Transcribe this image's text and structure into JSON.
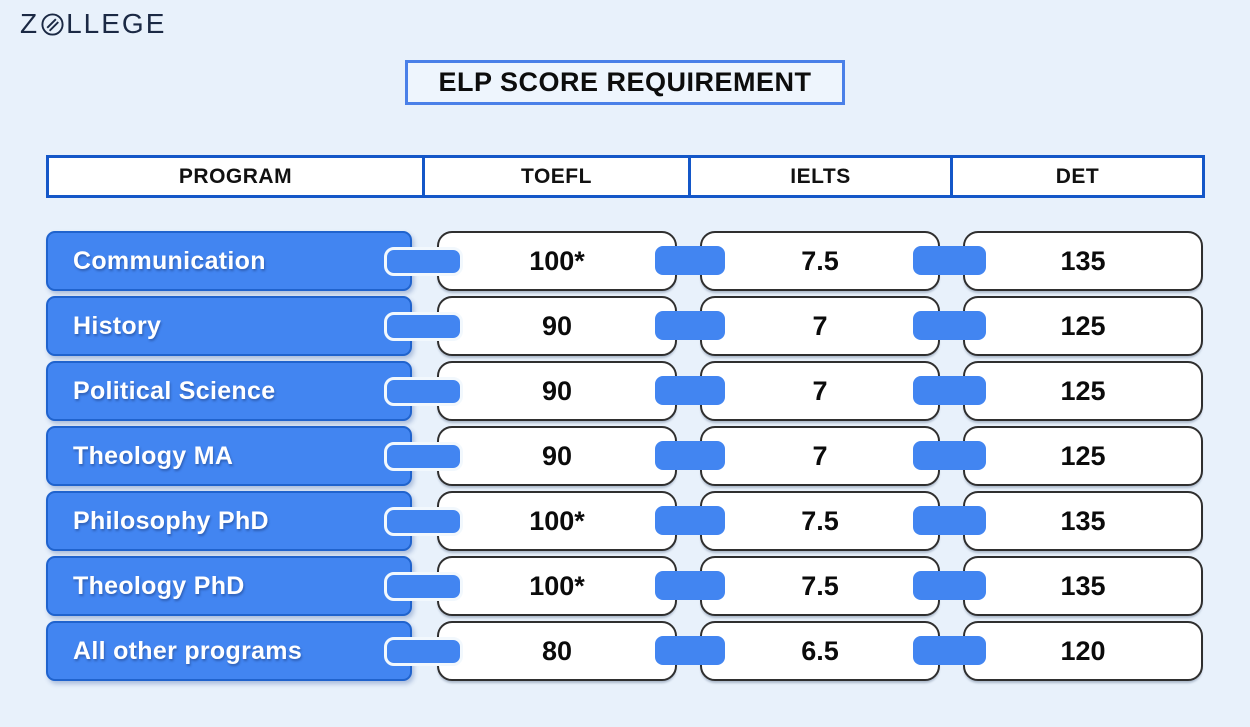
{
  "logo": {
    "prefix": "Z",
    "suffix": "LLEGE",
    "icon": "slashed-o-icon",
    "color": "#1b2944"
  },
  "title": "ELP SCORE REQUIREMENT",
  "colors": {
    "background": "#e8f1fb",
    "accent_blue": "#4285f1",
    "program_border": "#2063cd",
    "header_border": "#1457c8",
    "title_border": "#4a80e8",
    "score_box_border": "#2f2f2f",
    "text_dark": "#0d0d0d"
  },
  "chart_data": {
    "type": "table",
    "title": "ELP SCORE REQUIREMENT",
    "columns": [
      "PROGRAM",
      "TOEFL",
      "IELTS",
      "DET"
    ],
    "rows": [
      [
        "Communication",
        "100*",
        "7.5",
        "135"
      ],
      [
        "History",
        "90",
        "7",
        "125"
      ],
      [
        "Political Science",
        "90",
        "7",
        "125"
      ],
      [
        "Theology MA",
        "90",
        "7",
        "125"
      ],
      [
        "Philosophy PhD",
        "100*",
        "7.5",
        "135"
      ],
      [
        "Theology PhD",
        "100*",
        "7.5",
        "135"
      ],
      [
        "All other programs",
        "80",
        "6.5",
        "120"
      ]
    ]
  }
}
